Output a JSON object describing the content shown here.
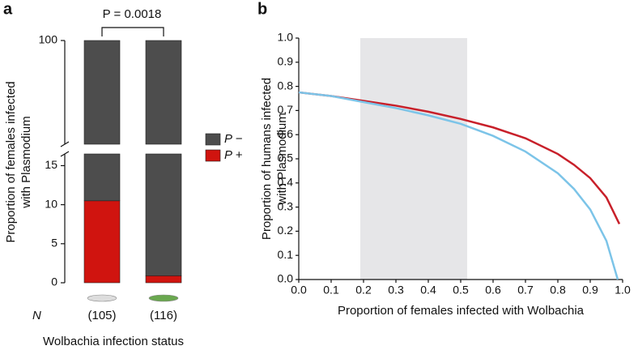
{
  "chart_data": [
    {
      "type": "bar",
      "stacked": true,
      "panel_label": "a",
      "y_label": [
        "Proportion of females infected",
        "with Plasmodium"
      ],
      "x_label": "Wolbachia infection status",
      "annotation": "P = 0.0018",
      "n_label": "N",
      "categories": [
        "(105)",
        "(116)"
      ],
      "series": [
        {
          "name": "P +",
          "color": "#d0140f",
          "values": [
            10.5,
            0.9
          ]
        },
        {
          "name": "P −",
          "color": "#4d4d4d",
          "values": [
            89.5,
            99.1
          ]
        }
      ],
      "ylim": [
        0,
        100
      ],
      "ybreak": [
        16.5,
        87
      ],
      "yticks": [
        0,
        5,
        10,
        15,
        100
      ]
    },
    {
      "type": "line",
      "panel_label": "b",
      "y_label": [
        "Proportion of humans infected",
        "with Plasmodium"
      ],
      "x_label": "Proportion of females infected with Wolbachia",
      "highlight_x": [
        0.19,
        0.52
      ],
      "highlight_color": "#e6e6e8",
      "xlim": [
        0,
        1
      ],
      "ylim": [
        0,
        1
      ],
      "xticks": [
        {
          "value": 0,
          "label": "0.0"
        },
        0.1,
        0.2,
        0.3,
        0.4,
        0.5,
        0.6,
        0.7,
        0.8,
        0.9,
        {
          "value": 1,
          "label": "1.0"
        }
      ],
      "yticks": [
        {
          "value": 0,
          "label": "0.0"
        },
        0.1,
        0.2,
        0.3,
        0.4,
        0.5,
        0.6,
        0.7,
        0.8,
        0.9,
        {
          "value": 1,
          "label": "1.0"
        }
      ],
      "series": [
        {
          "color": "#c8202a",
          "x": [
            0,
            0.1,
            0.2,
            0.3,
            0.4,
            0.5,
            0.6,
            0.7,
            0.8,
            0.85,
            0.9,
            0.95,
            0.99
          ],
          "values": [
            0.775,
            0.76,
            0.74,
            0.72,
            0.695,
            0.665,
            0.63,
            0.585,
            0.52,
            0.475,
            0.42,
            0.34,
            0.23
          ]
        },
        {
          "color": "#7cc4e8",
          "x": [
            0,
            0.1,
            0.2,
            0.3,
            0.4,
            0.5,
            0.6,
            0.7,
            0.8,
            0.85,
            0.9,
            0.95,
            0.985
          ],
          "values": [
            0.775,
            0.76,
            0.735,
            0.71,
            0.68,
            0.645,
            0.595,
            0.53,
            0.44,
            0.375,
            0.29,
            0.16,
            0
          ]
        }
      ]
    }
  ]
}
